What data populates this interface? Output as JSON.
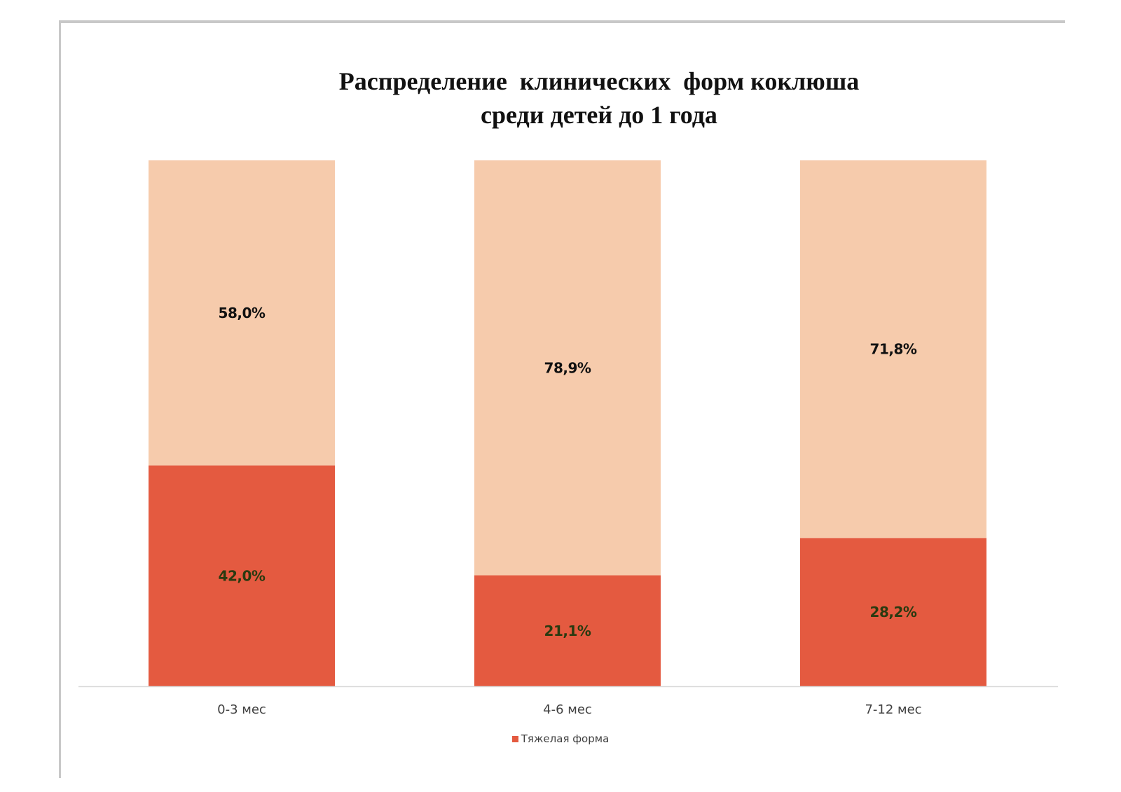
{
  "chart_data": {
    "type": "bar",
    "stacked": true,
    "title": "Распределение  клинических  форм коклюша\nсреди детей до 1 года",
    "categories": [
      "0-3 мес",
      "4-6 мес",
      "7-12 мес"
    ],
    "series": [
      {
        "name": "Тяжелая форма",
        "values": [
          42.0,
          21.1,
          28.2
        ],
        "labels": [
          "42,0%",
          "21,1%",
          "28,2%"
        ],
        "color": "#e45a40",
        "label_color": "#2a3a10"
      },
      {
        "values": [
          58.0,
          78.9,
          71.8
        ],
        "labels": [
          "58,0%",
          "78,9%",
          "71,8%"
        ],
        "color": "#f6cbac",
        "label_color": "#111111"
      }
    ],
    "ylim": [
      0,
      100
    ],
    "grid": false,
    "legend_position": "bottom"
  },
  "legend": {
    "label": "Тяжелая форма",
    "color": "#e45a40"
  }
}
